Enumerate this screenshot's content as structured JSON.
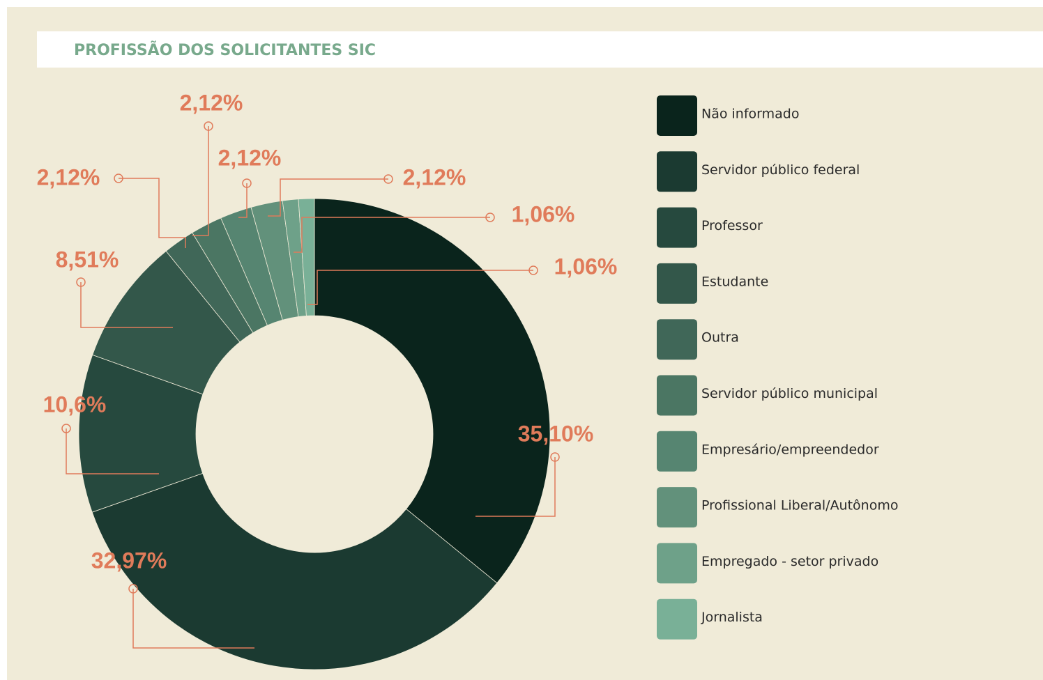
{
  "chart_data": {
    "type": "donut",
    "title": "PROFISSÃO DOS SOLICITANTES SIC",
    "categories": [
      "Não informado",
      "Servidor público federal",
      "Professor",
      "Estudante",
      "Outra",
      "Servidor público municipal",
      "Empresário/empreendedor",
      "Profissional Liberal/Autônomo",
      "Empregado - setor privado",
      "Jornalista"
    ],
    "values": [
      35.1,
      32.97,
      10.6,
      8.51,
      2.12,
      2.12,
      2.12,
      2.12,
      1.06,
      1.06
    ],
    "value_labels": [
      "35,10%",
      "32,97%",
      "10,6%",
      "8,51%",
      "2,12%",
      "2,12%",
      "2,12%",
      "2,12%",
      "1,06%",
      "1,06%"
    ],
    "colors": [
      "#0a241c",
      "#1b3a31",
      "#26493e",
      "#33574a",
      "#406758",
      "#4b7663",
      "#568571",
      "#62917b",
      "#6ea189",
      "#79b097"
    ]
  }
}
